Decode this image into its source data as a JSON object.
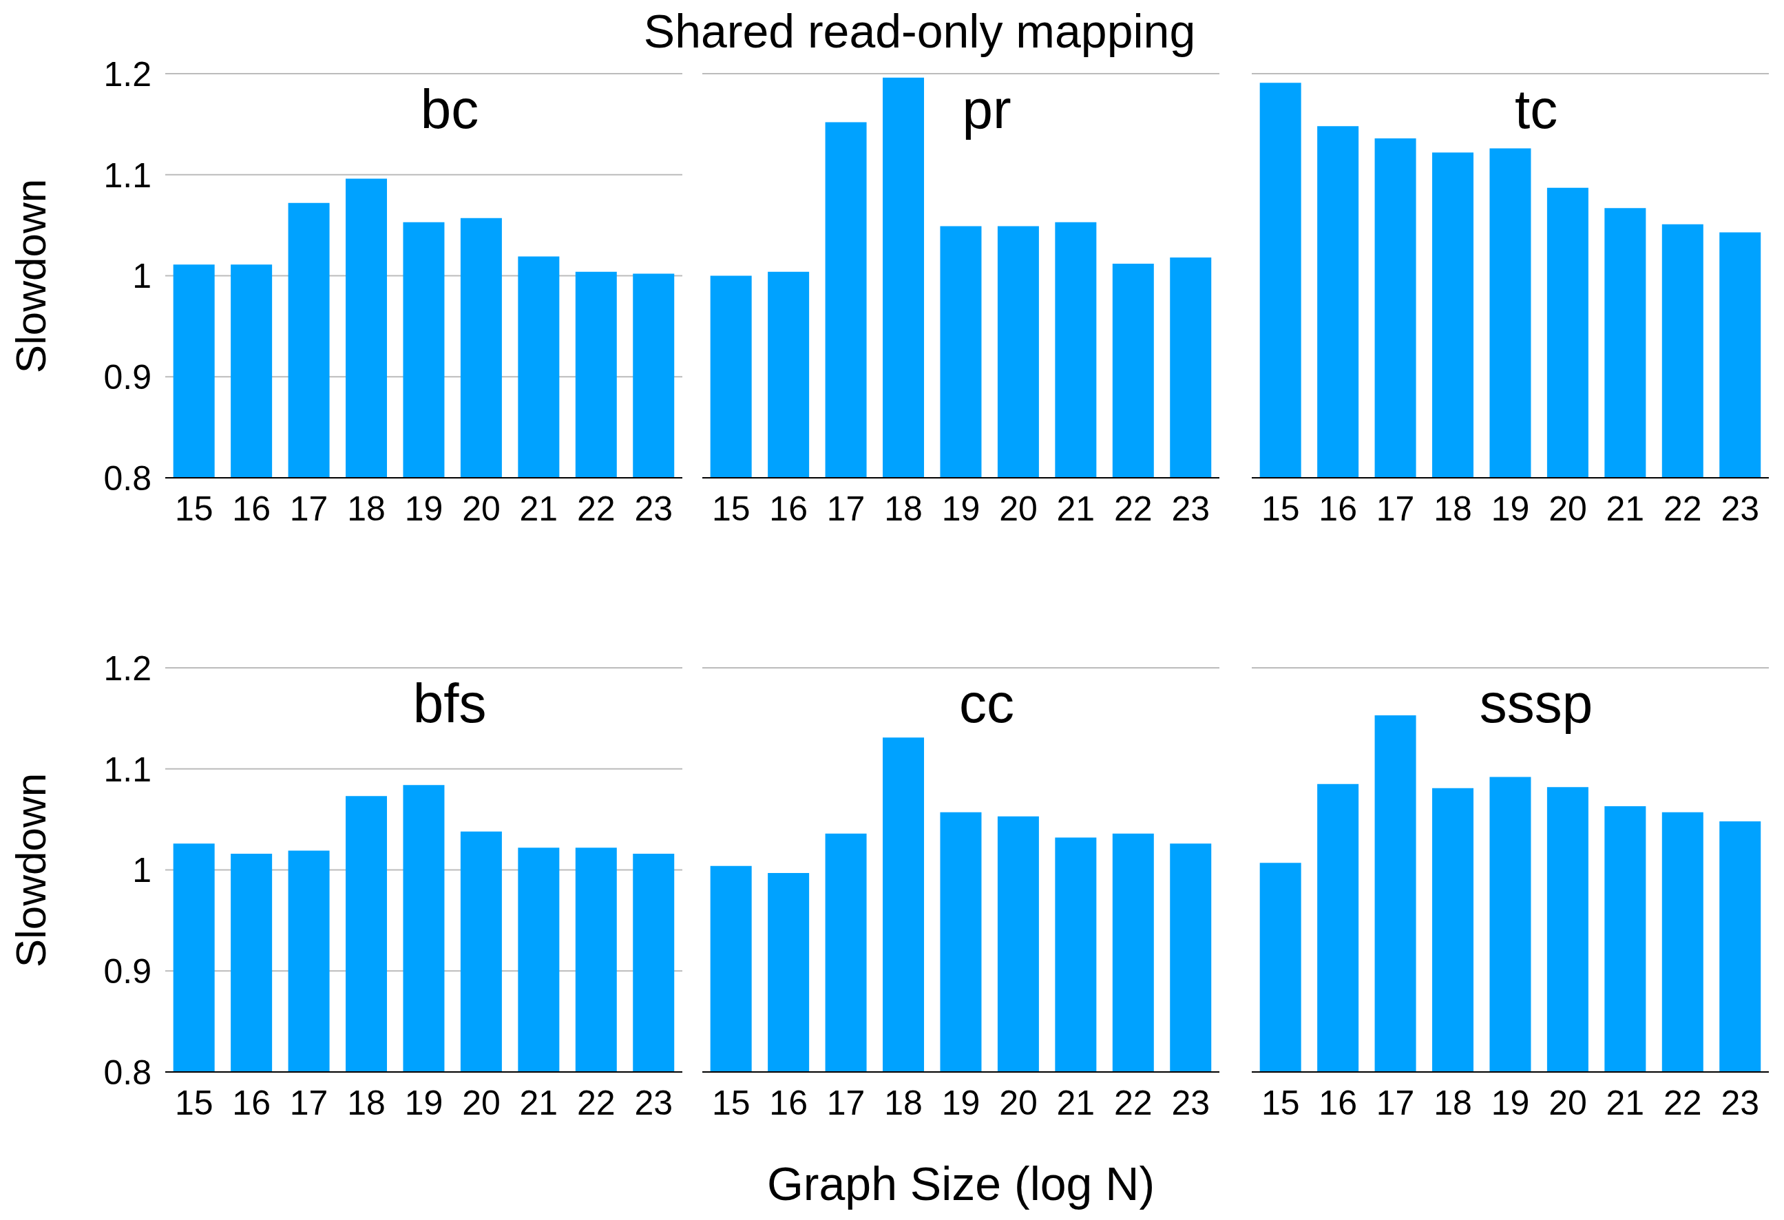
{
  "chart_data": [
    {
      "type": "bar",
      "subtitle": "bc",
      "ylabel": "Slowdown",
      "categories": [
        "15",
        "16",
        "17",
        "18",
        "19",
        "20",
        "21",
        "22",
        "23"
      ],
      "values": [
        1.011,
        1.011,
        1.072,
        1.096,
        1.053,
        1.057,
        1.019,
        1.004,
        1.002
      ],
      "color": "#00a2ff",
      "ylim": [
        0.8,
        1.2
      ],
      "yticks": [
        0.8,
        0.9,
        1,
        1.1,
        1.2
      ],
      "grid": "y"
    },
    {
      "type": "bar",
      "title": "Shared read-only mapping",
      "subtitle": "pr",
      "categories": [
        "15",
        "16",
        "17",
        "18",
        "19",
        "20",
        "21",
        "22",
        "23"
      ],
      "values": [
        1.0,
        1.004,
        1.152,
        1.196,
        1.049,
        1.049,
        1.053,
        1.012,
        1.018
      ],
      "color": "#00a2ff",
      "ylim": [
        0.8,
        1.2
      ],
      "yticks": [
        0.8,
        0.9,
        1,
        1.1,
        1.2
      ],
      "grid": "y",
      "tick_labels": "x"
    },
    {
      "type": "bar",
      "subtitle": "tc",
      "categories": [
        "15",
        "16",
        "17",
        "18",
        "19",
        "20",
        "21",
        "22",
        "23"
      ],
      "values": [
        1.191,
        1.148,
        1.136,
        1.122,
        1.126,
        1.087,
        1.067,
        1.051,
        1.043
      ],
      "color": "#00a2ff",
      "ylim": [
        0.8,
        1.2
      ],
      "yticks": [
        0.8,
        0.9,
        1,
        1.1,
        1.2
      ],
      "grid": "y",
      "tick_labels": "x"
    },
    {
      "type": "bar",
      "subtitle": "bfs",
      "ylabel": "Slowdown",
      "categories": [
        "15",
        "16",
        "17",
        "18",
        "19",
        "20",
        "21",
        "22",
        "23"
      ],
      "values": [
        1.026,
        1.016,
        1.019,
        1.073,
        1.084,
        1.038,
        1.022,
        1.022,
        1.016
      ],
      "color": "#00a2ff",
      "ylim": [
        0.8,
        1.2
      ],
      "yticks": [
        0.8,
        0.9,
        1,
        1.1,
        1.2
      ],
      "grid": "y"
    },
    {
      "type": "bar",
      "subtitle": "cc",
      "xlabel": "Graph Size (log N)",
      "categories": [
        "15",
        "16",
        "17",
        "18",
        "19",
        "20",
        "21",
        "22",
        "23"
      ],
      "values": [
        1.004,
        0.997,
        1.036,
        1.131,
        1.057,
        1.053,
        1.032,
        1.036,
        1.026
      ],
      "color": "#00a2ff",
      "ylim": [
        0.8,
        1.2
      ],
      "yticks": [
        0.8,
        0.9,
        1,
        1.1,
        1.2
      ],
      "grid": "y",
      "tick_labels": "x"
    },
    {
      "type": "bar",
      "subtitle": "sssp",
      "categories": [
        "15",
        "16",
        "17",
        "18",
        "19",
        "20",
        "21",
        "22",
        "23"
      ],
      "values": [
        1.007,
        1.085,
        1.153,
        1.081,
        1.092,
        1.082,
        1.063,
        1.057,
        1.048
      ],
      "color": "#00a2ff",
      "ylim": [
        0.8,
        1.2
      ],
      "yticks": [
        0.8,
        0.9,
        1,
        1.1,
        1.2
      ],
      "grid": "y",
      "tick_labels": "x"
    }
  ]
}
